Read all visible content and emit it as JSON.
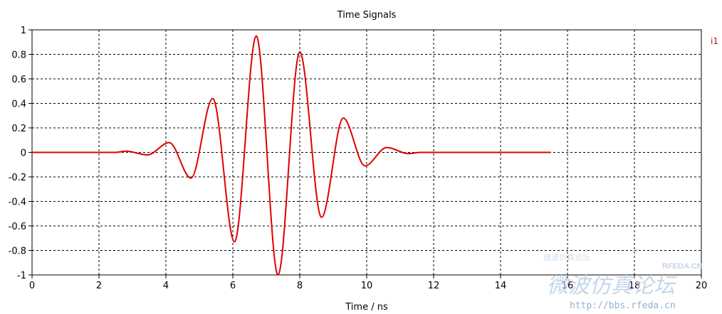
{
  "chart_data": {
    "type": "line",
    "title": "Time Signals",
    "xlabel": "Time / ns",
    "ylabel": "",
    "xlim": [
      0,
      20
    ],
    "ylim": [
      -1,
      1
    ],
    "xticks": [
      0,
      2,
      4,
      6,
      8,
      10,
      12,
      14,
      16,
      18,
      20
    ],
    "yticks": [
      -1,
      -0.8,
      -0.6,
      -0.4,
      -0.2,
      0,
      0.2,
      0.4,
      0.6,
      0.8,
      1
    ],
    "grid": true,
    "legend_position": "top-right",
    "series": [
      {
        "name": "i1",
        "color": "#e00000",
        "x": [
          0,
          2.5,
          2.8,
          3.45,
          4.1,
          4.75,
          5.4,
          6.05,
          6.7,
          7.35,
          8.0,
          8.65,
          9.3,
          9.95,
          10.6,
          11.25,
          11.6,
          15.5
        ],
        "y": [
          0,
          0,
          0.01,
          -0.02,
          0.08,
          -0.21,
          0.44,
          -0.73,
          0.95,
          -1.0,
          0.82,
          -0.53,
          0.28,
          -0.11,
          0.04,
          -0.01,
          0,
          0
        ]
      }
    ]
  },
  "watermark": {
    "brand": "RFEDA.CN",
    "url": "http://bbs.rfeda.cn",
    "cjk_large": "微波仿真论坛",
    "cjk_small": "微波仿真论坛"
  }
}
